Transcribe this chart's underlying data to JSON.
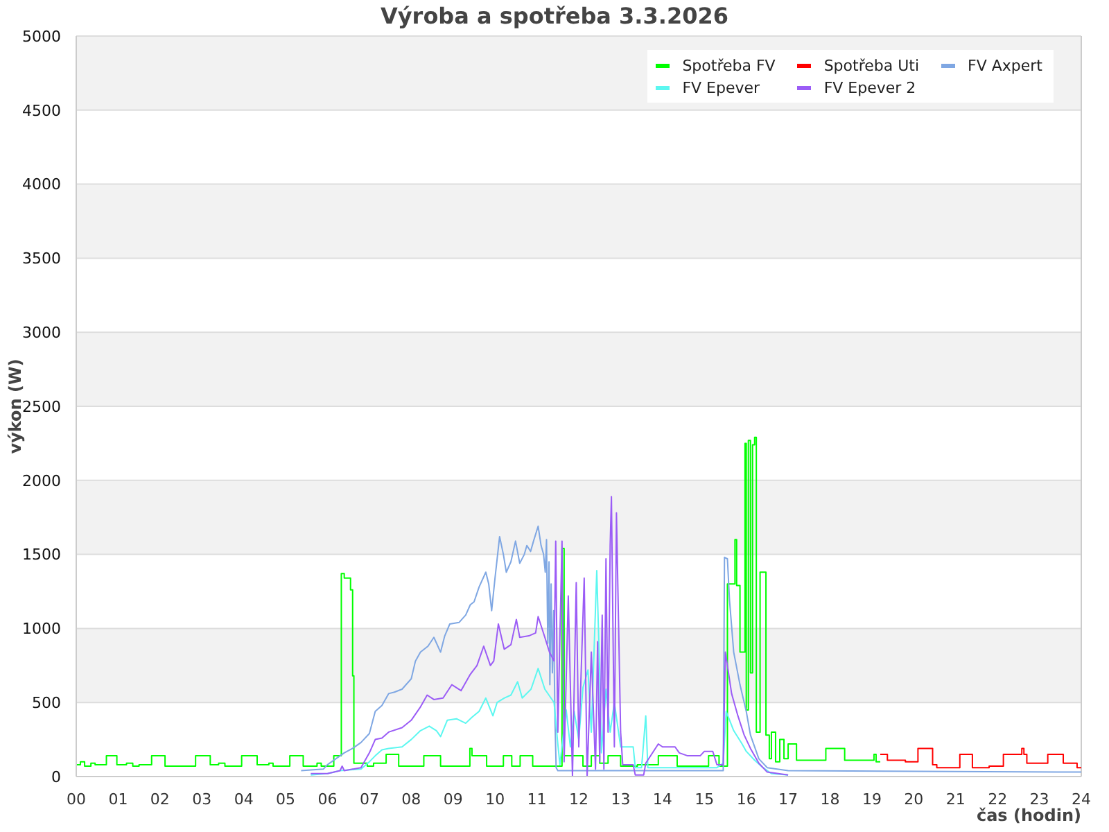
{
  "chart_data": {
    "type": "line",
    "title": "Výroba a spotřeba 3.3.2026",
    "xlabel": "čas (hodin)",
    "ylabel": "výkon (W)",
    "xlim": [
      0,
      24
    ],
    "xticks": [
      {
        "value": 0,
        "label": "00"
      },
      {
        "value": 1,
        "label": "01"
      },
      {
        "value": 2,
        "label": "02"
      },
      {
        "value": 3,
        "label": "03"
      },
      {
        "value": 4,
        "label": "04"
      },
      {
        "value": 5,
        "label": "05"
      },
      {
        "value": 6,
        "label": "06"
      },
      {
        "value": 7,
        "label": "07"
      },
      {
        "value": 8,
        "label": "08"
      },
      {
        "value": 9,
        "label": "09"
      },
      10,
      11,
      12,
      13,
      14,
      15,
      16,
      17,
      18,
      19,
      20,
      21,
      22,
      23,
      24
    ],
    "ylim": [
      0,
      5000
    ],
    "yticks": [
      0,
      500,
      1000,
      1500,
      2000,
      2500,
      3000,
      3500,
      4000,
      4500,
      5000
    ],
    "grid": "y",
    "legend": "top right",
    "series": [
      {
        "name": "Spotřeba FV",
        "type": "step",
        "color": "#00ff00",
        "x": [
          0,
          0.1,
          0.2,
          0.35,
          0.45,
          0.72,
          0.97,
          1.2,
          1.35,
          1.5,
          1.8,
          2.12,
          2.85,
          3.2,
          3.4,
          3.55,
          3.95,
          4.32,
          4.6,
          4.7,
          5.1,
          5.42,
          5.75,
          5.85,
          6.15,
          6.33,
          6.4,
          6.55,
          6.6,
          6.63,
          6.95,
          7.1,
          7.4,
          7.7,
          8.3,
          8.7,
          9.4,
          9.45,
          9.8,
          10.2,
          10.4,
          10.6,
          10.9,
          11.6,
          11.65,
          12.1,
          12.3,
          12.5,
          12.7,
          13.0,
          13.4,
          13.9,
          14.35,
          15.1,
          15.35,
          15.55,
          15.73,
          15.77,
          15.85,
          15.97,
          16.0,
          16.05,
          16.1,
          16.15,
          16.2,
          16.24,
          16.33,
          16.47,
          16.55,
          16.6,
          16.7,
          16.8,
          16.9,
          17.0,
          17.2,
          17.9,
          18.35,
          19.05,
          19.1,
          19.2
        ],
        "values": [
          80,
          100,
          70,
          90,
          80,
          140,
          80,
          90,
          70,
          80,
          140,
          70,
          140,
          80,
          90,
          70,
          140,
          80,
          90,
          70,
          140,
          70,
          90,
          70,
          140,
          1370,
          1340,
          1260,
          680,
          90,
          70,
          90,
          150,
          70,
          140,
          70,
          190,
          140,
          70,
          140,
          70,
          140,
          70,
          1540,
          140,
          70,
          140,
          90,
          140,
          70,
          80,
          140,
          70,
          140,
          70,
          1300,
          1600,
          1290,
          840,
          2250,
          450,
          2270,
          700,
          2240,
          2290,
          300,
          1380,
          280,
          120,
          300,
          100,
          250,
          120,
          220,
          110,
          190,
          110,
          150,
          100,
          100
        ]
      },
      {
        "name": "Spotřeba Uti",
        "type": "step",
        "color": "#ff0000",
        "x": [
          19.2,
          19.37,
          19.8,
          20.1,
          20.45,
          20.55,
          21.1,
          21.4,
          21.8,
          22.14,
          22.58,
          22.63,
          22.7,
          23.2,
          23.57,
          23.9,
          24
        ],
        "values": [
          150,
          110,
          100,
          190,
          80,
          60,
          150,
          60,
          70,
          150,
          190,
          150,
          90,
          150,
          90,
          60,
          60
        ]
      },
      {
        "name": "FV Axpert",
        "type": "line",
        "color": "#7fa7e3",
        "x": [
          5.37,
          5.9,
          6.0,
          6.2,
          6.4,
          6.6,
          6.8,
          7.0,
          7.14,
          7.3,
          7.46,
          7.6,
          7.78,
          8.0,
          8.1,
          8.22,
          8.4,
          8.54,
          8.7,
          8.8,
          8.92,
          9.14,
          9.3,
          9.41,
          9.5,
          9.62,
          9.78,
          9.85,
          9.92,
          10.0,
          10.11,
          10.2,
          10.27,
          10.38,
          10.49,
          10.59,
          10.7,
          10.76,
          10.85,
          10.92,
          11.03,
          11.1,
          11.16,
          11.2,
          11.23,
          11.26,
          11.29,
          11.31,
          11.34,
          11.37,
          11.4,
          11.43,
          11.46,
          11.5,
          15.45,
          15.48,
          15.55,
          15.6,
          15.7,
          15.85,
          16.0,
          16.1,
          16.3,
          16.5,
          17.0,
          24
        ],
        "values": [
          40,
          50,
          80,
          120,
          160,
          190,
          230,
          290,
          440,
          480,
          560,
          570,
          590,
          660,
          780,
          840,
          880,
          940,
          840,
          950,
          1030,
          1040,
          1090,
          1160,
          1180,
          1280,
          1380,
          1300,
          1120,
          1340,
          1620,
          1500,
          1380,
          1450,
          1590,
          1440,
          1500,
          1560,
          1520,
          1590,
          1690,
          1560,
          1500,
          1380,
          1600,
          900,
          1450,
          620,
          1300,
          700,
          1120,
          400,
          60,
          40,
          40,
          1480,
          1470,
          1190,
          840,
          620,
          440,
          280,
          120,
          60,
          40,
          30
        ]
      },
      {
        "name": "FV Epever",
        "type": "line",
        "color": "#5cf7f0",
        "x": [
          5.6,
          6.0,
          6.3,
          6.8,
          7.0,
          7.14,
          7.3,
          7.46,
          7.78,
          8.0,
          8.22,
          8.43,
          8.6,
          8.7,
          8.86,
          9.08,
          9.3,
          9.45,
          9.62,
          9.78,
          9.95,
          10.05,
          10.22,
          10.38,
          10.54,
          10.65,
          10.86,
          11.03,
          11.19,
          11.41,
          11.5,
          11.55,
          11.7,
          11.8,
          11.89,
          12.0,
          12.1,
          12.22,
          12.3,
          12.43,
          12.5,
          12.54,
          12.65,
          12.75,
          12.85,
          13.0,
          13.1,
          13.3,
          13.35,
          13.5,
          13.6,
          13.65,
          15.3,
          15.45,
          15.52,
          15.7,
          15.9,
          16.0,
          16.2,
          16.4,
          16.6,
          17.0
        ],
        "values": [
          10,
          20,
          40,
          50,
          100,
          140,
          180,
          190,
          200,
          250,
          310,
          340,
          310,
          270,
          380,
          390,
          360,
          400,
          440,
          530,
          410,
          500,
          530,
          550,
          640,
          530,
          590,
          730,
          590,
          500,
          220,
          80,
          450,
          200,
          440,
          250,
          600,
          720,
          300,
          1390,
          700,
          160,
          590,
          300,
          500,
          200,
          200,
          200,
          60,
          60,
          410,
          60,
          60,
          90,
          440,
          310,
          220,
          170,
          110,
          60,
          20,
          10
        ]
      },
      {
        "name": "FV Epever 2",
        "type": "line",
        "color": "#9b5cf6",
        "x": [
          5.6,
          6.0,
          6.3,
          6.35,
          6.4,
          6.8,
          7.0,
          7.14,
          7.3,
          7.46,
          7.78,
          8.0,
          8.22,
          8.38,
          8.54,
          8.76,
          8.97,
          9.19,
          9.41,
          9.57,
          9.73,
          9.89,
          9.97,
          10.08,
          10.22,
          10.38,
          10.51,
          10.59,
          10.81,
          10.97,
          11.03,
          11.19,
          11.3,
          11.41,
          11.45,
          11.5,
          11.6,
          11.65,
          11.75,
          11.85,
          11.94,
          12.0,
          12.13,
          12.2,
          12.3,
          12.4,
          12.45,
          12.5,
          12.56,
          12.6,
          12.65,
          12.7,
          12.75,
          12.78,
          12.85,
          12.9,
          13.0,
          13.05,
          13.3,
          13.35,
          13.55,
          13.6,
          13.9,
          14.0,
          14.3,
          14.4,
          14.6,
          14.9,
          15.0,
          15.2,
          15.3,
          15.45,
          15.5,
          15.55,
          15.65,
          15.8,
          15.95,
          16.1,
          16.3,
          16.5,
          17.0
        ],
        "values": [
          20,
          20,
          40,
          70,
          40,
          60,
          160,
          250,
          260,
          300,
          330,
          380,
          470,
          550,
          520,
          530,
          620,
          580,
          690,
          750,
          880,
          750,
          780,
          1030,
          860,
          890,
          1060,
          940,
          950,
          970,
          1080,
          940,
          840,
          780,
          1590,
          300,
          1590,
          100,
          1220,
          0,
          1310,
          200,
          1340,
          0,
          840,
          50,
          910,
          100,
          1090,
          50,
          1470,
          300,
          1560,
          1890,
          200,
          1780,
          300,
          80,
          80,
          10,
          10,
          90,
          220,
          200,
          200,
          160,
          140,
          140,
          170,
          170,
          80,
          80,
          840,
          750,
          560,
          410,
          280,
          190,
          90,
          30,
          10
        ]
      }
    ]
  }
}
